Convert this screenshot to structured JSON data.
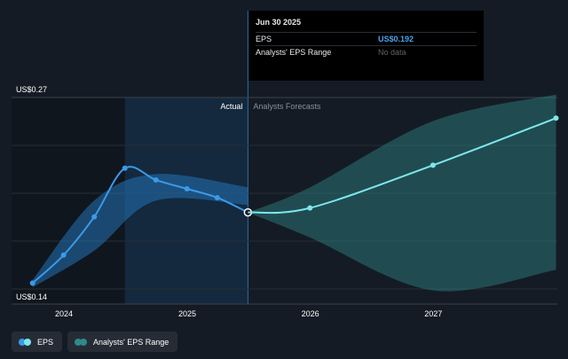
{
  "chart_data": {
    "type": "line",
    "y_axis": {
      "top_label": "US$0.27",
      "bottom_label": "US$0.14",
      "ylim": [
        0.14,
        0.27
      ]
    },
    "x_ticks": [
      "2024",
      "2025",
      "2026",
      "2027"
    ],
    "regions": {
      "actual_label": "Actual",
      "forecast_label": "Analysts Forecasts"
    },
    "series": [
      {
        "name": "EPS",
        "color": "#3b9ae8",
        "points": [
          [
            "2023-09-30",
            0.144
          ],
          [
            "2023-12-31",
            0.163
          ],
          [
            "2024-03-31",
            0.189
          ],
          [
            "2024-06-30",
            0.222
          ],
          [
            "2024-09-30",
            0.214
          ],
          [
            "2024-12-31",
            0.208
          ],
          [
            "2025-03-31",
            0.202
          ],
          [
            "2025-06-30",
            0.192
          ]
        ]
      },
      {
        "name": "EPS Forecast",
        "color": "#7de7ec",
        "points": [
          [
            "2025-06-30",
            0.192
          ],
          [
            "2025-12-31",
            0.195
          ],
          [
            "2026-12-31",
            0.224
          ],
          [
            "2027-12-31",
            0.256
          ]
        ]
      }
    ],
    "ranges": [
      {
        "name": "Analysts' EPS Range",
        "color": "#2f8a8a",
        "upper": [
          [
            "2025-06-30",
            0.192
          ],
          [
            "2025-12-31",
            0.209
          ],
          [
            "2026-12-31",
            0.254
          ],
          [
            "2027-12-31",
            0.272
          ]
        ],
        "lower": [
          [
            "2025-06-30",
            0.192
          ],
          [
            "2025-12-31",
            0.175
          ],
          [
            "2026-12-31",
            0.139
          ],
          [
            "2027-12-31",
            0.153
          ]
        ]
      },
      {
        "name": "Historical range",
        "color": "#2373b5",
        "upper": [
          [
            "2023-09-30",
            0.146
          ],
          [
            "2024-03-31",
            0.2
          ],
          [
            "2024-09-30",
            0.218
          ],
          [
            "2025-06-30",
            0.209
          ]
        ],
        "lower": [
          [
            "2023-09-30",
            0.141
          ],
          [
            "2024-03-31",
            0.166
          ],
          [
            "2024-09-30",
            0.2
          ],
          [
            "2025-06-30",
            0.197
          ]
        ]
      }
    ],
    "legend": [
      {
        "label": "EPS",
        "colors": [
          "#3b9ae8",
          "#7de7ec"
        ]
      },
      {
        "label": "Analysts' EPS Range",
        "colors": [
          "#2f8a8a",
          "#2f8a8a"
        ]
      }
    ],
    "tooltip": {
      "date": "Jun 30 2025",
      "rows": [
        {
          "label": "EPS",
          "value": "US$0.192"
        },
        {
          "label": "Analysts' EPS Range",
          "value": "No data"
        }
      ]
    }
  }
}
